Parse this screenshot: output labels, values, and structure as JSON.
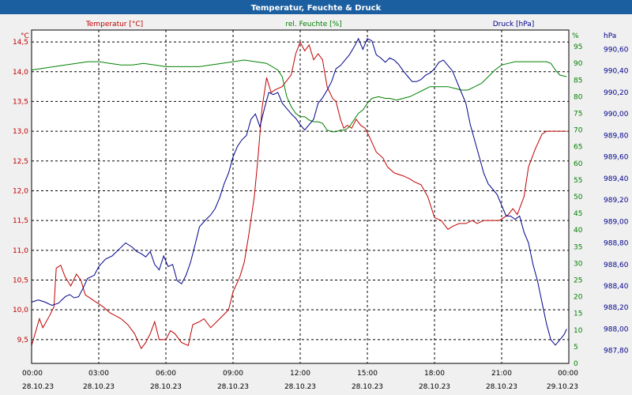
{
  "chart_data": {
    "type": "line",
    "title": "Temperatur, Feuchte & Druck",
    "colors": {
      "temperature": "#c00000",
      "humidity": "#008000",
      "pressure": "#00008b",
      "title_bar": "#1c5fa0",
      "plot_bg": "#ffffff"
    },
    "grid": true,
    "x_axis": {
      "range_hours": [
        0,
        24
      ],
      "ticks": [
        {
          "time": "00:00",
          "date": "28.10.23"
        },
        {
          "time": "03:00",
          "date": "28.10.23"
        },
        {
          "time": "06:00",
          "date": "28.10.23"
        },
        {
          "time": "09:00",
          "date": "28.10.23"
        },
        {
          "time": "12:00",
          "date": "28.10.23"
        },
        {
          "time": "15:00",
          "date": "28.10.23"
        },
        {
          "time": "18:00",
          "date": "28.10.23"
        },
        {
          "time": "21:00",
          "date": "28.10.23"
        },
        {
          "time": "00:00",
          "date": "29.10.23"
        }
      ]
    },
    "y_left": {
      "unit": "°C",
      "ylim": [
        9.1,
        14.7
      ],
      "ticks": [
        "9,5",
        "10,0",
        "10,5",
        "11,0",
        "11,5",
        "12,0",
        "12,5",
        "13,0",
        "13,5",
        "14,0",
        "14,5"
      ],
      "tick_values": [
        9.5,
        10.0,
        10.5,
        11.0,
        11.5,
        12.0,
        12.5,
        13.0,
        13.5,
        14.0,
        14.5
      ]
    },
    "y_hum": {
      "unit": "%",
      "ylim": [
        0,
        100
      ],
      "ticks": [
        "0",
        "5",
        "10",
        "15",
        "20",
        "25",
        "30",
        "35",
        "40",
        "45",
        "50",
        "55",
        "60",
        "65",
        "70",
        "75",
        "80",
        "85",
        "90",
        "95"
      ],
      "tick_values": [
        0,
        5,
        10,
        15,
        20,
        25,
        30,
        35,
        40,
        45,
        50,
        55,
        60,
        65,
        70,
        75,
        80,
        85,
        90,
        95
      ]
    },
    "y_press": {
      "unit": "hPa",
      "ylim": [
        987.68,
        990.78
      ],
      "ticks": [
        "987,80",
        "988,00",
        "988,20",
        "988,40",
        "988,60",
        "988,80",
        "989,00",
        "989,20",
        "989,40",
        "989,60",
        "989,80",
        "990,00",
        "990,20",
        "990,40",
        "990,60"
      ],
      "tick_values": [
        987.8,
        988.0,
        988.2,
        988.4,
        988.6,
        988.8,
        989.0,
        989.2,
        989.4,
        989.6,
        989.8,
        990.0,
        990.2,
        990.4,
        990.6
      ]
    },
    "series": [
      {
        "name": "Temperatur [°C]",
        "axis": "temp",
        "x": [
          0,
          0.35,
          0.5,
          0.8,
          1.0,
          1.1,
          1.3,
          1.5,
          1.75,
          2.0,
          2.2,
          2.4,
          2.6,
          2.8,
          3.0,
          3.2,
          3.5,
          3.75,
          4.0,
          4.3,
          4.6,
          4.9,
          5.1,
          5.3,
          5.5,
          5.7,
          6.0,
          6.2,
          6.4,
          6.7,
          7.0,
          7.2,
          7.5,
          7.7,
          8.0,
          8.4,
          8.8,
          9.0,
          9.3,
          9.5,
          9.7,
          9.95,
          10.1,
          10.3,
          10.5,
          10.7,
          10.9,
          11.2,
          11.4,
          11.6,
          11.8,
          12.0,
          12.2,
          12.4,
          12.6,
          12.8,
          13.0,
          13.2,
          13.45,
          13.6,
          13.8,
          13.95,
          14.1,
          14.3,
          14.5,
          14.7,
          14.9,
          15.1,
          15.4,
          15.7,
          15.9,
          16.2,
          16.6,
          16.9,
          17.1,
          17.4,
          17.7,
          18.0,
          18.3,
          18.6,
          18.8,
          19.1,
          19.4,
          19.7,
          19.9,
          20.2,
          20.4,
          20.6,
          20.9,
          21.1,
          21.3,
          21.5,
          21.7,
          22.0,
          22.2,
          22.5,
          22.8,
          23.0,
          23.1,
          23.3,
          23.4,
          23.55,
          23.7,
          23.8,
          23.9
        ],
        "values": [
          9.4,
          9.85,
          9.7,
          9.9,
          10.05,
          10.7,
          10.75,
          10.55,
          10.4,
          10.6,
          10.5,
          10.25,
          10.2,
          10.15,
          10.1,
          10.05,
          9.95,
          9.9,
          9.85,
          9.75,
          9.6,
          9.35,
          9.45,
          9.6,
          9.8,
          9.5,
          9.5,
          9.65,
          9.6,
          9.45,
          9.4,
          9.75,
          9.8,
          9.85,
          9.7,
          9.85,
          10.0,
          10.3,
          10.55,
          10.8,
          11.25,
          11.9,
          12.5,
          13.4,
          13.9,
          13.65,
          13.7,
          13.75,
          13.85,
          13.95,
          14.3,
          14.5,
          14.35,
          14.45,
          14.2,
          14.3,
          14.2,
          13.75,
          13.55,
          13.5,
          13.2,
          13.05,
          13.1,
          13.05,
          13.2,
          13.1,
          13.05,
          12.9,
          12.65,
          12.55,
          12.4,
          12.3,
          12.25,
          12.2,
          12.15,
          12.1,
          11.9,
          11.55,
          11.5,
          11.35,
          11.4,
          11.45,
          11.45,
          11.5,
          11.45,
          11.5,
          11.5,
          11.5,
          11.5,
          11.55,
          11.6,
          11.7,
          11.6,
          11.9,
          12.4,
          12.7,
          12.95,
          13.0,
          13.0,
          13.0,
          13.0,
          13.0,
          13.0,
          13.0,
          13.0
        ],
        "color": "#c00000"
      },
      {
        "name": "rel. Feuchte [%]",
        "axis": "hum",
        "x": [
          0,
          0.5,
          1.0,
          1.5,
          2.0,
          2.5,
          3.0,
          3.5,
          4.0,
          4.5,
          5.0,
          5.5,
          6.0,
          6.5,
          7.0,
          7.5,
          8.0,
          8.5,
          9.0,
          9.5,
          10.0,
          10.5,
          11.0,
          11.2,
          11.4,
          11.6,
          11.8,
          12.0,
          12.2,
          12.4,
          12.6,
          12.8,
          13.0,
          13.2,
          13.4,
          13.6,
          13.8,
          14.0,
          14.2,
          14.4,
          14.6,
          14.8,
          15.0,
          15.2,
          15.5,
          15.8,
          16.0,
          16.3,
          16.6,
          16.9,
          17.2,
          17.5,
          17.8,
          18.0,
          18.3,
          18.6,
          18.9,
          19.2,
          19.5,
          19.8,
          20.1,
          20.4,
          20.7,
          21.0,
          21.3,
          21.6,
          21.9,
          22.2,
          22.5,
          22.8,
          23.0,
          23.2,
          23.4,
          23.6,
          23.9
        ],
        "values": [
          88,
          88.5,
          89,
          89.5,
          90,
          90.5,
          90.5,
          90,
          89.5,
          89.5,
          90,
          89.5,
          89,
          89,
          89,
          89,
          89.5,
          90,
          90.5,
          91,
          90.5,
          90,
          88,
          86,
          80,
          77,
          75,
          74,
          74,
          73,
          72.5,
          72.5,
          72,
          70,
          69.5,
          69.5,
          70,
          70,
          71,
          73,
          75,
          76,
          78,
          79.5,
          80,
          79.5,
          79.5,
          79,
          79.5,
          80,
          81,
          82,
          83,
          83,
          83,
          83,
          82.5,
          82,
          82,
          83,
          84,
          86,
          88,
          89.5,
          90,
          90.5,
          90.5,
          90.5,
          90.5,
          90.5,
          90.5,
          90,
          88,
          86.5,
          86
        ],
        "color": "#008000"
      },
      {
        "name": "Druck [hPa]",
        "axis": "press",
        "x": [
          0,
          0.3,
          0.6,
          0.9,
          1.2,
          1.5,
          1.7,
          1.9,
          2.1,
          2.3,
          2.5,
          2.8,
          3.0,
          3.3,
          3.6,
          3.9,
          4.2,
          4.5,
          4.7,
          4.9,
          5.1,
          5.3,
          5.5,
          5.7,
          5.9,
          6.1,
          6.3,
          6.5,
          6.7,
          6.9,
          7.1,
          7.3,
          7.5,
          7.8,
          8.0,
          8.2,
          8.4,
          8.6,
          8.8,
          9.0,
          9.2,
          9.4,
          9.6,
          9.8,
          10.0,
          10.2,
          10.4,
          10.6,
          10.8,
          11.0,
          11.2,
          11.4,
          11.6,
          11.8,
          12.0,
          12.2,
          12.4,
          12.6,
          12.8,
          13.0,
          13.2,
          13.4,
          13.6,
          13.8,
          14.0,
          14.2,
          14.4,
          14.6,
          14.8,
          15.0,
          15.2,
          15.4,
          15.6,
          15.8,
          16.0,
          16.2,
          16.4,
          16.6,
          16.8,
          17.0,
          17.2,
          17.4,
          17.6,
          17.8,
          18.0,
          18.2,
          18.4,
          18.6,
          18.8,
          19.0,
          19.2,
          19.4,
          19.6,
          19.8,
          20.0,
          20.2,
          20.4,
          20.6,
          20.8,
          21.0,
          21.2,
          21.4,
          21.6,
          21.8,
          22.0,
          22.2,
          22.4,
          22.6,
          22.8,
          23.0,
          23.2,
          23.4,
          23.6,
          23.8,
          23.9
        ],
        "values": [
          988.25,
          988.27,
          988.25,
          988.22,
          988.24,
          988.3,
          988.32,
          988.29,
          988.3,
          988.38,
          988.47,
          988.5,
          988.58,
          988.65,
          988.68,
          988.74,
          988.8,
          988.76,
          988.72,
          988.7,
          988.67,
          988.72,
          988.6,
          988.55,
          988.68,
          988.58,
          988.6,
          988.45,
          988.42,
          988.5,
          988.62,
          988.78,
          988.95,
          989.02,
          989.06,
          989.12,
          989.22,
          989.35,
          989.45,
          989.6,
          989.7,
          989.76,
          989.8,
          989.95,
          990.0,
          989.88,
          990.05,
          990.2,
          990.18,
          990.2,
          990.1,
          990.05,
          990.0,
          989.96,
          989.9,
          989.85,
          989.9,
          989.95,
          990.1,
          990.15,
          990.22,
          990.3,
          990.42,
          990.45,
          990.5,
          990.55,
          990.62,
          990.7,
          990.6,
          990.7,
          990.68,
          990.55,
          990.52,
          990.48,
          990.52,
          990.5,
          990.46,
          990.4,
          990.35,
          990.3,
          990.3,
          990.32,
          990.36,
          990.38,
          990.42,
          990.48,
          990.5,
          990.45,
          990.4,
          990.3,
          990.2,
          990.1,
          989.9,
          989.75,
          989.6,
          989.45,
          989.35,
          989.3,
          989.25,
          989.15,
          989.05,
          989.05,
          989.02,
          989.05,
          988.9,
          988.8,
          988.6,
          988.45,
          988.25,
          988.05,
          987.9,
          987.85,
          987.9,
          987.95,
          988.0
        ],
        "color": "#00008b"
      }
    ]
  }
}
